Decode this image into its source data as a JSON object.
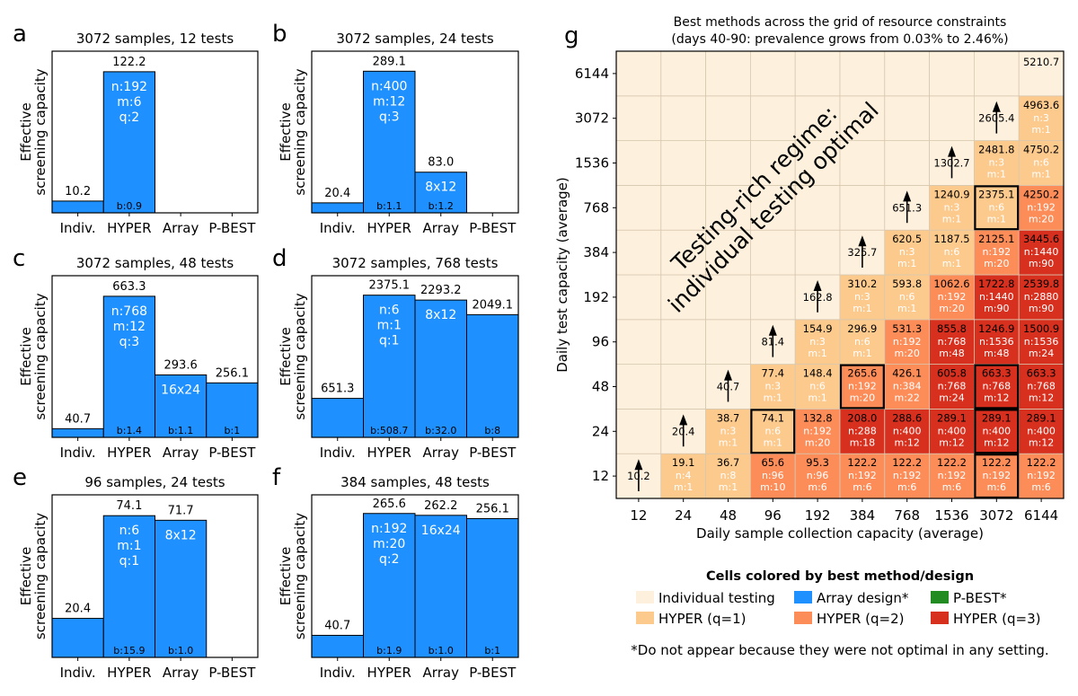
{
  "colors": {
    "individual": "#fdf0dd",
    "hyper_q1": "#fdca8e",
    "array": "#1e90ff",
    "pbest": "#228b22",
    "hyper_q2": "#fc8d59",
    "hyper_q3": "#d7301f",
    "grid_border": "#d8c8b0"
  },
  "chart_data": [
    {
      "panel": "a",
      "type": "bar",
      "title": "3072 samples, 12 tests",
      "ylabel": "Effective screening capacity",
      "categories": [
        "Indiv.",
        "HYPER",
        "Array",
        "P-BEST"
      ],
      "values": [
        10.2,
        122.2,
        null,
        null
      ],
      "value_labels": [
        "10.2",
        "122.2",
        "",
        ""
      ],
      "inner_labels": [
        "",
        "n:192\nm:6\nq:2",
        "",
        ""
      ],
      "bottom_labels": [
        "",
        "b:0.9",
        "",
        ""
      ],
      "ymax": 140
    },
    {
      "panel": "b",
      "type": "bar",
      "title": "3072 samples, 24 tests",
      "ylabel": "Effective screening capacity",
      "categories": [
        "Indiv.",
        "HYPER",
        "Array",
        "P-BEST"
      ],
      "values": [
        20.4,
        289.1,
        83.0,
        null
      ],
      "value_labels": [
        "20.4",
        "289.1",
        "83.0",
        ""
      ],
      "inner_labels": [
        "",
        "n:400\nm:12\nq:3",
        "8x12",
        ""
      ],
      "bottom_labels": [
        "",
        "b:1.1",
        "b:1.2",
        ""
      ],
      "ymax": 330
    },
    {
      "panel": "c",
      "type": "bar",
      "title": "3072 samples, 48 tests",
      "ylabel": "Effective screening capacity",
      "categories": [
        "Indiv.",
        "HYPER",
        "Array",
        "P-BEST"
      ],
      "values": [
        40.7,
        663.3,
        293.6,
        256.1
      ],
      "value_labels": [
        "40.7",
        "663.3",
        "293.6",
        "256.1"
      ],
      "inner_labels": [
        "",
        "n:768\nm:12\nq:3",
        "16x24",
        ""
      ],
      "bottom_labels": [
        "",
        "b:1.4",
        "b:1.1",
        "b:1"
      ],
      "ymax": 760
    },
    {
      "panel": "d",
      "type": "bar",
      "title": "3072 samples, 768 tests",
      "ylabel": "Effective screening capacity",
      "categories": [
        "Indiv.",
        "HYPER",
        "Array",
        "P-BEST"
      ],
      "values": [
        651.3,
        2375.1,
        2293.2,
        2049.1
      ],
      "value_labels": [
        "651.3",
        "2375.1",
        "2293.2",
        "2049.1"
      ],
      "inner_labels": [
        "",
        "n:6\nm:1\nq:1",
        "8x12",
        ""
      ],
      "bottom_labels": [
        "",
        "b:508.7",
        "b:32.0",
        "b:8"
      ],
      "ymax": 2700
    },
    {
      "panel": "e",
      "type": "bar",
      "title": "96 samples, 24 tests",
      "ylabel": "Effective screening capacity",
      "categories": [
        "Indiv.",
        "HYPER",
        "Array",
        "P-BEST"
      ],
      "values": [
        20.4,
        74.1,
        71.7,
        null
      ],
      "value_labels": [
        "20.4",
        "74.1",
        "71.7",
        ""
      ],
      "inner_labels": [
        "",
        "n:6\nm:1\nq:1",
        "8x12",
        ""
      ],
      "bottom_labels": [
        "",
        "b:15.9",
        "b:1.0",
        ""
      ],
      "ymax": 85
    },
    {
      "panel": "f",
      "type": "bar",
      "title": "384 samples, 48 tests",
      "ylabel": "Effective screening capacity",
      "categories": [
        "Indiv.",
        "HYPER",
        "Array",
        "P-BEST"
      ],
      "values": [
        40.7,
        265.6,
        262.2,
        256.1
      ],
      "value_labels": [
        "40.7",
        "265.6",
        "262.2",
        "256.1"
      ],
      "inner_labels": [
        "",
        "n:192\nm:20\nq:2",
        "16x24",
        ""
      ],
      "bottom_labels": [
        "",
        "b:1.9",
        "b:1.0",
        "b:1"
      ],
      "ymax": 300
    },
    {
      "panel": "g",
      "type": "heatmap",
      "title_line1": "Best methods across the grid of resource constraints",
      "title_line2": "(days 40-90: prevalence grows from 0.03% to 2.46%)",
      "xlabel": "Daily sample collection capacity (average)",
      "ylabel": "Daily test capacity (average)",
      "x": [
        "12",
        "24",
        "48",
        "96",
        "192",
        "384",
        "768",
        "1536",
        "3072",
        "6144"
      ],
      "y": [
        "12",
        "24",
        "48",
        "96",
        "192",
        "384",
        "768",
        "1536",
        "3072",
        "6144"
      ],
      "annotation": [
        "Testing-rich regime:",
        "individual testing optimal"
      ],
      "rows": [
        {
          "test": "12",
          "cells": [
            {
              "v": "10.2",
              "m": "I"
            },
            {
              "v": "19.1",
              "d": "n:4\nm:1",
              "m": "H1"
            },
            {
              "v": "36.7",
              "d": "n:8\nm:1",
              "m": "H1"
            },
            {
              "v": "65.6",
              "d": "n:96\nm:10",
              "m": "H2"
            },
            {
              "v": "95.3",
              "d": "n:96\nm:6",
              "m": "H2"
            },
            {
              "v": "122.2",
              "d": "n:192\nm:6",
              "m": "H2"
            },
            {
              "v": "122.2",
              "d": "n:192\nm:6",
              "m": "H2"
            },
            {
              "v": "122.2",
              "d": "n:192\nm:6",
              "m": "H2"
            },
            {
              "v": "122.2",
              "d": "n:192\nm:6",
              "m": "H2",
              "box": true
            },
            {
              "v": "122.2",
              "d": "n:192\nm:6",
              "m": "H2"
            }
          ]
        },
        {
          "test": "24",
          "cells": [
            {
              "v": "",
              "m": "I"
            },
            {
              "v": "20.4",
              "m": "I"
            },
            {
              "v": "38.7",
              "d": "n:3\nm:1",
              "m": "H1"
            },
            {
              "v": "74.1",
              "d": "n:6\nm:1",
              "m": "H1",
              "box": true
            },
            {
              "v": "132.8",
              "d": "n:192\nm:20",
              "m": "H2"
            },
            {
              "v": "208.0",
              "d": "n:288\nm:18",
              "m": "H3"
            },
            {
              "v": "288.6",
              "d": "n:400\nm:12",
              "m": "H3"
            },
            {
              "v": "289.1",
              "d": "n:400\nm:12",
              "m": "H3"
            },
            {
              "v": "289.1",
              "d": "n:400\nm:12",
              "m": "H3",
              "box": true
            },
            {
              "v": "289.1",
              "d": "n:400\nm:12",
              "m": "H3"
            }
          ]
        },
        {
          "test": "48",
          "cells": [
            {
              "v": "",
              "m": "I"
            },
            {
              "v": "",
              "m": "I"
            },
            {
              "v": "40.7",
              "m": "I"
            },
            {
              "v": "77.4",
              "d": "n:3\nm:1",
              "m": "H1"
            },
            {
              "v": "148.4",
              "d": "n:6\nm:1",
              "m": "H1"
            },
            {
              "v": "265.6",
              "d": "n:192\nm:20",
              "m": "H2",
              "box": true
            },
            {
              "v": "426.1",
              "d": "n:384\nm:22",
              "m": "H2"
            },
            {
              "v": "605.8",
              "d": "n:768\nm:24",
              "m": "H3"
            },
            {
              "v": "663.3",
              "d": "n:768\nm:12",
              "m": "H3",
              "box": true
            },
            {
              "v": "663.3",
              "d": "n:768\nm:12",
              "m": "H3"
            }
          ]
        },
        {
          "test": "96",
          "cells": [
            {
              "v": "",
              "m": "I"
            },
            {
              "v": "",
              "m": "I"
            },
            {
              "v": "",
              "m": "I"
            },
            {
              "v": "81.4",
              "m": "I"
            },
            {
              "v": "154.9",
              "d": "n:3\nm:1",
              "m": "H1"
            },
            {
              "v": "296.9",
              "d": "n:6\nm:1",
              "m": "H1"
            },
            {
              "v": "531.3",
              "d": "n:192\nm:20",
              "m": "H2"
            },
            {
              "v": "855.8",
              "d": "n:768\nm:48",
              "m": "H3"
            },
            {
              "v": "1246.9",
              "d": "n:1536\nm:48",
              "m": "H3"
            },
            {
              "v": "1500.9",
              "d": "n:1536\nm:24",
              "m": "H3"
            }
          ]
        },
        {
          "test": "192",
          "cells": [
            {
              "v": "",
              "m": "I"
            },
            {
              "v": "",
              "m": "I"
            },
            {
              "v": "",
              "m": "I"
            },
            {
              "v": "",
              "m": "I"
            },
            {
              "v": "162.8",
              "m": "I"
            },
            {
              "v": "310.2",
              "d": "n:3\nm:1",
              "m": "H1"
            },
            {
              "v": "593.8",
              "d": "n:6\nm:1",
              "m": "H1"
            },
            {
              "v": "1062.6",
              "d": "n:192\nm:20",
              "m": "H2"
            },
            {
              "v": "1722.8",
              "d": "n:1440\nm:90",
              "m": "H3"
            },
            {
              "v": "2539.8",
              "d": "n:2880\nm:90",
              "m": "H3"
            }
          ]
        },
        {
          "test": "384",
          "cells": [
            {
              "v": "",
              "m": "I"
            },
            {
              "v": "",
              "m": "I"
            },
            {
              "v": "",
              "m": "I"
            },
            {
              "v": "",
              "m": "I"
            },
            {
              "v": "",
              "m": "I"
            },
            {
              "v": "325.7",
              "m": "I"
            },
            {
              "v": "620.5",
              "d": "n:3\nm:1",
              "m": "H1"
            },
            {
              "v": "1187.5",
              "d": "n:6\nm:1",
              "m": "H1"
            },
            {
              "v": "2125.1",
              "d": "n:192\nm:20",
              "m": "H2"
            },
            {
              "v": "3445.6",
              "d": "n:1440\nm:90",
              "m": "H3"
            }
          ]
        },
        {
          "test": "768",
          "cells": [
            {
              "v": "",
              "m": "I"
            },
            {
              "v": "",
              "m": "I"
            },
            {
              "v": "",
              "m": "I"
            },
            {
              "v": "",
              "m": "I"
            },
            {
              "v": "",
              "m": "I"
            },
            {
              "v": "",
              "m": "I"
            },
            {
              "v": "651.3",
              "m": "I"
            },
            {
              "v": "1240.9",
              "d": "n:3\nm:1",
              "m": "H1"
            },
            {
              "v": "2375.1",
              "d": "n:6\nm:1",
              "m": "H1",
              "box": true
            },
            {
              "v": "4250.2",
              "d": "n:192\nm:20",
              "m": "H2"
            }
          ]
        },
        {
          "test": "1536",
          "cells": [
            {
              "v": "",
              "m": "I"
            },
            {
              "v": "",
              "m": "I"
            },
            {
              "v": "",
              "m": "I"
            },
            {
              "v": "",
              "m": "I"
            },
            {
              "v": "",
              "m": "I"
            },
            {
              "v": "",
              "m": "I"
            },
            {
              "v": "",
              "m": "I"
            },
            {
              "v": "1302.7",
              "m": "I"
            },
            {
              "v": "2481.8",
              "d": "n:3\nm:1",
              "m": "H1"
            },
            {
              "v": "4750.2",
              "d": "n:6\nm:1",
              "m": "H1"
            }
          ]
        },
        {
          "test": "3072",
          "cells": [
            {
              "v": "",
              "m": "I"
            },
            {
              "v": "",
              "m": "I"
            },
            {
              "v": "",
              "m": "I"
            },
            {
              "v": "",
              "m": "I"
            },
            {
              "v": "",
              "m": "I"
            },
            {
              "v": "",
              "m": "I"
            },
            {
              "v": "",
              "m": "I"
            },
            {
              "v": "",
              "m": "I"
            },
            {
              "v": "2605.4",
              "m": "I"
            },
            {
              "v": "4963.6",
              "d": "n:3\nm:1",
              "m": "H1"
            }
          ]
        },
        {
          "test": "6144",
          "cells": [
            {
              "v": "",
              "m": "I"
            },
            {
              "v": "",
              "m": "I"
            },
            {
              "v": "",
              "m": "I"
            },
            {
              "v": "",
              "m": "I"
            },
            {
              "v": "",
              "m": "I"
            },
            {
              "v": "",
              "m": "I"
            },
            {
              "v": "",
              "m": "I"
            },
            {
              "v": "",
              "m": "I"
            },
            {
              "v": "",
              "m": "I"
            },
            {
              "v": "5210.7",
              "m": "I"
            }
          ]
        }
      ],
      "arrows": [
        {
          "col": 0,
          "from_row": 0
        },
        {
          "col": 1,
          "from_row": 1
        },
        {
          "col": 2,
          "from_row": 2
        },
        {
          "col": 3,
          "from_row": 3
        },
        {
          "col": 4,
          "from_row": 4
        },
        {
          "col": 5,
          "from_row": 5
        },
        {
          "col": 6,
          "from_row": 6
        },
        {
          "col": 7,
          "from_row": 7
        },
        {
          "col": 8,
          "from_row": 8
        }
      ]
    }
  ],
  "legend": {
    "title": "Cells colored by best method/design",
    "items": [
      {
        "label": "Individual testing",
        "color_key": "individual"
      },
      {
        "label": "Array design*",
        "color_key": "array"
      },
      {
        "label": "P-BEST*",
        "color_key": "pbest"
      },
      {
        "label": "HYPER (q=1)",
        "color_key": "hyper_q1"
      },
      {
        "label": "HYPER (q=2)",
        "color_key": "hyper_q2"
      },
      {
        "label": "HYPER (q=3)",
        "color_key": "hyper_q3"
      }
    ],
    "footnote": "*Do not appear because they were not optimal in any setting."
  }
}
